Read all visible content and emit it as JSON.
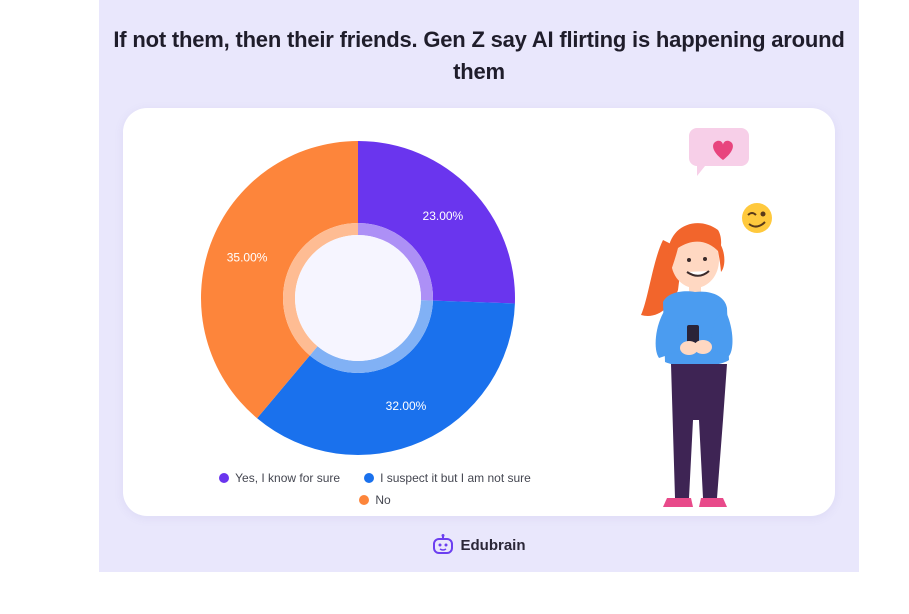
{
  "title": "If not them, then their friends. Gen Z say AI flirting is happening around them",
  "brand": {
    "name": "Edubrain",
    "logo_icon": "robot-face-icon",
    "accent": "#6c3ff0"
  },
  "colors": {
    "panel_bg": "#e9e7fc",
    "card_bg": "#ffffff"
  },
  "illustration": {
    "figure": "girl-with-phone-illustration",
    "heart": "heart-speech-bubble-icon",
    "emoji": "winking-emoji-icon"
  },
  "chart_data": {
    "type": "pie",
    "style": "donut",
    "legend_position": "bottom",
    "series": [
      {
        "name": "Yes, I know for sure",
        "value": 23.0,
        "label": "23.00%",
        "color": "#6a35ee"
      },
      {
        "name": "I suspect it but I am not sure",
        "value": 32.0,
        "label": "32.00%",
        "color": "#1a71ed"
      },
      {
        "name": "No",
        "value": 35.0,
        "label": "35.00%",
        "color": "#fd853b"
      }
    ]
  }
}
